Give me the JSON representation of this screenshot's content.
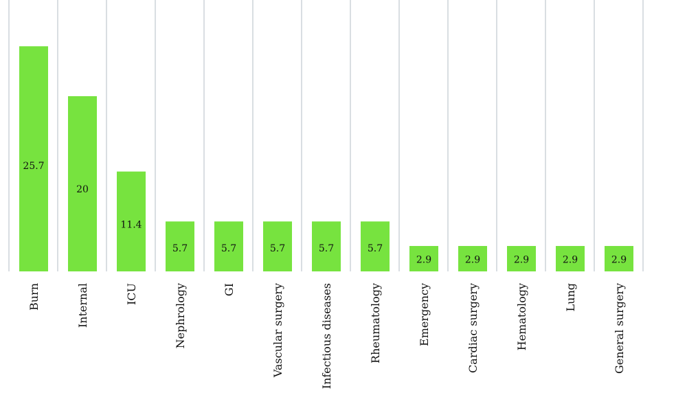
{
  "chart_data": {
    "type": "bar",
    "title": "",
    "xlabel": "",
    "ylabel": "",
    "categories": [
      "Burn",
      "Internal",
      "ICU",
      "Nephrology",
      "GI",
      "Vascular surgery",
      "Infectious diseases",
      "Rheumatology",
      "Emergency",
      "Cardiac surgery",
      "Hematology",
      "Lung",
      "General surgery"
    ],
    "values": [
      25.7,
      20,
      11.4,
      5.7,
      5.7,
      5.7,
      5.7,
      5.7,
      2.9,
      2.9,
      2.9,
      2.9,
      2.9
    ],
    "data_labels": [
      "25.7",
      "20",
      "11.4",
      "5.7",
      "5.7",
      "5.7",
      "5.7",
      "5.7",
      "2.9",
      "2.9",
      "2.9",
      "2.9",
      "2.9"
    ],
    "ylim": [
      0,
      30
    ],
    "grid": "vertical",
    "bar_color": "#77e33f",
    "grid_color": "#d9dee2",
    "text_color": "#111111"
  }
}
